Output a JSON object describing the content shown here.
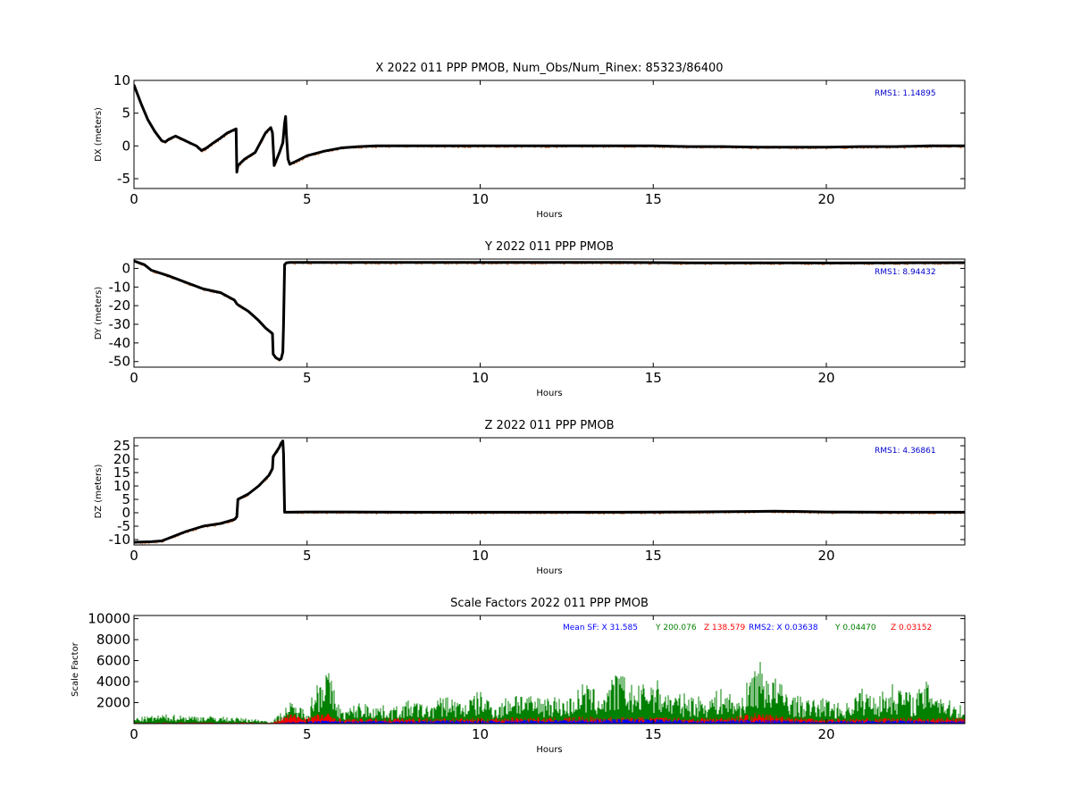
{
  "colors": {
    "trace": "#000000",
    "scatter": "#e07a3f",
    "sf_x": "#0000ff",
    "sf_y": "#008000",
    "sf_z": "#ff0000",
    "rms": "#0000cc"
  },
  "chart_data": [
    {
      "type": "line",
      "title": "X 2022 011 PPP  PMOB, Num_Obs/Num_Rinex: 85323/86400",
      "xlabel": "Hours",
      "ylabel": "DX (meters)",
      "xlim": [
        0,
        24
      ],
      "ylim": [
        -6.5,
        10
      ],
      "xticks": [
        0,
        5,
        10,
        15,
        20
      ],
      "yticks": [
        -5,
        0,
        5,
        10
      ],
      "annotation": "RMS1:  1.14895",
      "series": [
        {
          "x": [
            0,
            0.2,
            0.4,
            0.6,
            0.8,
            0.9,
            1.0,
            1.2,
            1.4,
            1.6,
            1.8,
            1.95,
            2.1,
            2.3,
            2.5,
            2.7,
            2.95,
            2.97,
            3.0,
            3.2,
            3.5,
            3.8,
            3.95,
            4.0,
            4.05,
            4.2,
            4.3,
            4.35,
            4.38,
            4.4,
            4.45,
            4.5,
            4.7,
            5.0,
            5.5,
            6.0,
            6.5,
            7.0,
            8.0,
            9.0,
            10.0,
            11.0,
            12.0,
            13.0,
            14.0,
            15.0,
            16.0,
            17.0,
            18.0,
            19.0,
            20.0,
            21.0,
            22.0,
            23.0,
            24.0
          ],
          "y": [
            9.3,
            6.5,
            4.0,
            2.2,
            0.8,
            0.6,
            1.0,
            1.5,
            1.0,
            0.5,
            0.0,
            -0.7,
            -0.3,
            0.5,
            1.2,
            2.0,
            2.6,
            -4.0,
            -3.0,
            -2.0,
            -1.0,
            2.0,
            2.8,
            2.0,
            -3.0,
            -1.0,
            0.5,
            3.5,
            4.5,
            2.0,
            -2.0,
            -2.8,
            -2.3,
            -1.5,
            -0.8,
            -0.3,
            -0.1,
            0.0,
            0.0,
            0.0,
            0.0,
            0.0,
            0.0,
            0.0,
            0.0,
            0.0,
            -0.1,
            -0.1,
            -0.2,
            -0.2,
            -0.2,
            -0.1,
            -0.1,
            0.0,
            0.0
          ]
        }
      ]
    },
    {
      "type": "line",
      "title": "Y 2022 011 PPP  PMOB",
      "xlabel": "Hours",
      "ylabel": "DY (meters)",
      "xlim": [
        0,
        24
      ],
      "ylim": [
        -53,
        5
      ],
      "xticks": [
        0,
        5,
        10,
        15,
        20
      ],
      "yticks": [
        -50,
        -40,
        -30,
        -20,
        -10,
        0
      ],
      "annotation": "RMS1:  8.94432",
      "series": [
        {
          "x": [
            0,
            0.3,
            0.5,
            1.0,
            1.5,
            2.0,
            2.5,
            2.9,
            2.97,
            3.0,
            3.3,
            3.6,
            3.8,
            4.0,
            4.02,
            4.1,
            4.2,
            4.25,
            4.3,
            4.32,
            4.35,
            4.4,
            4.5,
            5.0,
            6.0,
            8.0,
            10.0,
            12.0,
            14.0,
            16.0,
            18.0,
            20.0,
            22.0,
            24.0
          ],
          "y": [
            4.0,
            2.0,
            -1.0,
            -4.0,
            -7.5,
            -11.0,
            -13.0,
            -17.0,
            -19.0,
            -19.5,
            -23.0,
            -28.0,
            -32.0,
            -35.0,
            -46.0,
            -48.0,
            -49.0,
            -48.5,
            -45.0,
            -30.0,
            2.0,
            3.0,
            3.2,
            3.2,
            3.2,
            3.2,
            3.2,
            3.2,
            3.2,
            3.0,
            3.0,
            2.9,
            3.0,
            3.1
          ]
        }
      ]
    },
    {
      "type": "line",
      "title": "Z 2022 011 PPP  PMOB",
      "xlabel": "Hours",
      "ylabel": "DZ (meters)",
      "xlim": [
        0,
        24
      ],
      "ylim": [
        -12,
        28
      ],
      "xticks": [
        0,
        5,
        10,
        15,
        20
      ],
      "yticks": [
        -10,
        -5,
        0,
        5,
        10,
        15,
        20,
        25
      ],
      "annotation": "RMS1:  4.36861",
      "series": [
        {
          "x": [
            0,
            0.5,
            0.8,
            1.0,
            1.5,
            2.0,
            2.5,
            2.9,
            2.97,
            3.0,
            3.3,
            3.6,
            3.9,
            4.0,
            4.02,
            4.1,
            4.2,
            4.25,
            4.3,
            4.32,
            4.35,
            4.4,
            5.0,
            6.0,
            8.0,
            10.0,
            12.0,
            14.0,
            16.0,
            18.0,
            18.5,
            19.0,
            20.0,
            22.0,
            24.0
          ],
          "y": [
            -11.0,
            -10.8,
            -10.5,
            -9.5,
            -7.0,
            -5.0,
            -4.0,
            -2.5,
            -1.5,
            5.0,
            7.0,
            10.0,
            14.0,
            16.5,
            21.0,
            22.5,
            24.5,
            26.0,
            26.8,
            22.0,
            0.2,
            0.2,
            0.3,
            0.3,
            0.2,
            0.2,
            0.2,
            0.2,
            0.3,
            0.5,
            0.6,
            0.5,
            0.3,
            0.2,
            0.2
          ]
        }
      ]
    },
    {
      "type": "line",
      "title": "Scale Factors 2022 011 PPP  PMOB",
      "xlabel": "Hours",
      "ylabel": "Scale Factor",
      "xlim": [
        0,
        24
      ],
      "ylim": [
        0,
        10300
      ],
      "xticks": [
        0,
        5,
        10,
        15,
        20
      ],
      "yticks": [
        2000,
        4000,
        6000,
        8000,
        10000
      ],
      "annotation_parts": [
        "Mean SF: X  31.585",
        "Y 200.076",
        "Z 138.579",
        "RMS2: X  0.03638",
        "Y  0.04470",
        "Z  0.03152"
      ],
      "series": [
        {
          "x": [
            0,
            0.5,
            1,
            1.5,
            2,
            2.5,
            3,
            3.5,
            4,
            4.5,
            5,
            5.5,
            6,
            6.5,
            7,
            7.5,
            8,
            8.5,
            9,
            9.5,
            10,
            10.5,
            11,
            11.5,
            12,
            12.5,
            13,
            13.5,
            14,
            14.5,
            15,
            15.5,
            16,
            16.5,
            17,
            17.5,
            18,
            18.5,
            19,
            19.5,
            20,
            20.5,
            21,
            21.5,
            22,
            22.5,
            23,
            23.5,
            24
          ],
          "y": [
            500,
            650,
            800,
            700,
            650,
            600,
            500,
            400,
            200,
            1800,
            1200,
            5500,
            1000,
            1800,
            1600,
            1400,
            2000,
            1500,
            2500,
            1800,
            2800,
            1500,
            3000,
            2200,
            2500,
            2000,
            3500,
            2500,
            4500,
            3000,
            4000,
            2500,
            2500,
            2200,
            3000,
            2000,
            5500,
            4000,
            2500,
            2000,
            2200,
            1500,
            3000,
            2500,
            3500,
            2500,
            3800,
            2000,
            1500
          ]
        },
        {
          "x": [
            0,
            1,
            2,
            3,
            4,
            4.5,
            5,
            5.5,
            6,
            7,
            8,
            9,
            10,
            11,
            12,
            13,
            14,
            15,
            16,
            17,
            18,
            19,
            20,
            21,
            22,
            23,
            24
          ],
          "y": [
            80,
            100,
            100,
            90,
            80,
            900,
            600,
            1000,
            400,
            450,
            500,
            450,
            500,
            550,
            500,
            600,
            550,
            550,
            500,
            550,
            900,
            600,
            450,
            450,
            500,
            500,
            500
          ]
        },
        {
          "x": [
            0,
            1,
            2,
            3,
            4,
            4.5,
            5,
            5.5,
            6,
            7,
            8,
            9,
            10,
            11,
            12,
            13,
            14,
            15,
            16,
            17,
            18,
            19,
            20,
            21,
            22,
            23,
            24
          ],
          "y": [
            30,
            30,
            30,
            30,
            30,
            150,
            180,
            300,
            200,
            250,
            250,
            300,
            250,
            300,
            350,
            350,
            400,
            400,
            300,
            300,
            350,
            300,
            250,
            250,
            300,
            250,
            250
          ]
        }
      ]
    }
  ]
}
